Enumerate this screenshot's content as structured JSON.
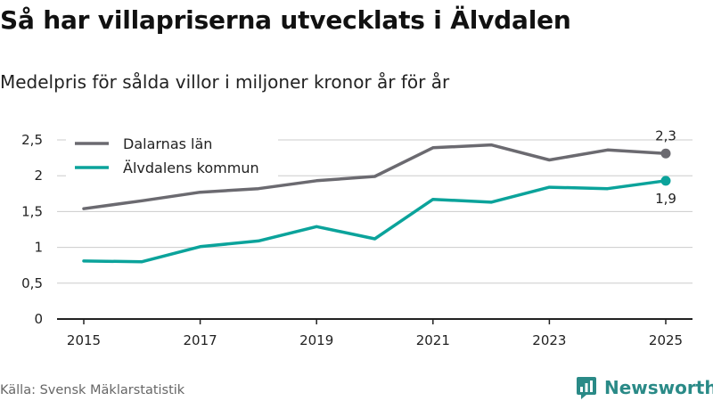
{
  "header": {
    "title": "Så har villapriserna utvecklats i Älvdalen",
    "subtitle": "Medelpris för sålda villor i miljoner kronor år för år"
  },
  "footer": {
    "source": "Källa: Svensk Mäklarstatistik",
    "brand": "Newsworthy"
  },
  "colors": {
    "gray": "#6b6a70",
    "teal": "#0ba39b",
    "grid": "#cccccc",
    "axis": "#222222"
  },
  "chart_data": {
    "type": "line",
    "title": "Så har villapriserna utvecklats i Älvdalen",
    "subtitle": "Medelpris för sålda villor i miljoner kronor år för år",
    "xlabel": "",
    "ylabel": "",
    "x": [
      2015,
      2016,
      2017,
      2018,
      2019,
      2020,
      2021,
      2022,
      2023,
      2024,
      2025
    ],
    "xticks": [
      2015,
      2017,
      2019,
      2021,
      2023,
      2025
    ],
    "xtick_labels": [
      "2015",
      "2017",
      "2019",
      "2021",
      "2023",
      "2025"
    ],
    "yticks": [
      0,
      0.5,
      1,
      1.5,
      2,
      2.5
    ],
    "ytick_labels": [
      "0",
      "0,5",
      "1",
      "1,5",
      "2",
      "2,5"
    ],
    "ylim": [
      0,
      2.5
    ],
    "grid": true,
    "legend_position": "top-left",
    "series": [
      {
        "name": "Dalarnas län",
        "color": "#6b6a70",
        "values": [
          1.54,
          1.65,
          1.77,
          1.82,
          1.93,
          1.99,
          2.39,
          2.43,
          2.22,
          2.36,
          2.31
        ],
        "end_label": "2,3",
        "end_label_position": "above"
      },
      {
        "name": "Älvdalens kommun",
        "color": "#0ba39b",
        "values": [
          0.81,
          0.8,
          1.01,
          1.09,
          1.29,
          1.12,
          1.67,
          1.63,
          1.84,
          1.82,
          1.93
        ],
        "end_label": "1,9",
        "end_label_position": "below"
      }
    ]
  }
}
